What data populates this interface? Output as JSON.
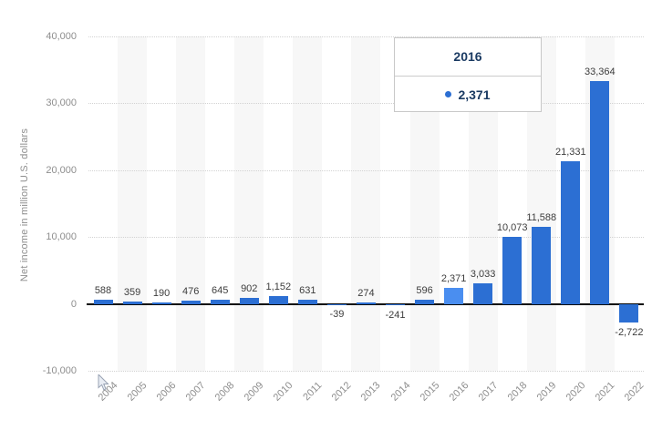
{
  "chart_data": {
    "type": "bar",
    "title": "",
    "xlabel": "",
    "ylabel": "Net income in million U.S. dollars",
    "categories": [
      "2004",
      "2005",
      "2006",
      "2007",
      "2008",
      "2009",
      "2010",
      "2011",
      "2012",
      "2013",
      "2014",
      "2015",
      "2016",
      "2017",
      "2018",
      "2019",
      "2020",
      "2021",
      "2022"
    ],
    "values": [
      588,
      359,
      190,
      476,
      645,
      902,
      1152,
      631,
      -39,
      274,
      -241,
      596,
      2371,
      3033,
      10073,
      11588,
      21331,
      33364,
      -2722
    ],
    "value_labels": [
      "588",
      "359",
      "190",
      "476",
      "645",
      "902",
      "1,152",
      "631",
      "-39",
      "274",
      "-241",
      "596",
      "2,371",
      "3,033",
      "10,073",
      "11,588",
      "21,331",
      "33,364",
      "-2,722"
    ],
    "ylim": [
      -10000,
      40000
    ],
    "y_ticks": [
      {
        "value": 40000,
        "label": "40,000"
      },
      {
        "value": 30000,
        "label": "30,000"
      },
      {
        "value": 20000,
        "label": "20,000"
      },
      {
        "value": 10000,
        "label": "10,000"
      },
      {
        "value": 0,
        "label": "0"
      },
      {
        "value": -10000,
        "label": "-10,000"
      }
    ],
    "grid": "horizontal-dotted",
    "legend": "none",
    "highlighted_index": 12,
    "colors": {
      "bar": "#2c6fd3",
      "bar_highlight": "#4a8ef0",
      "plot_band": "#f7f7f7",
      "gridline": "#d2d2d2",
      "zero_line": "#0a0a0a",
      "value_label": "#3d3d3d",
      "axis_text": "#8e8e8e"
    }
  },
  "tooltip": {
    "year": "2016",
    "value": "2,371",
    "marker_color": "#2c6fd3"
  }
}
